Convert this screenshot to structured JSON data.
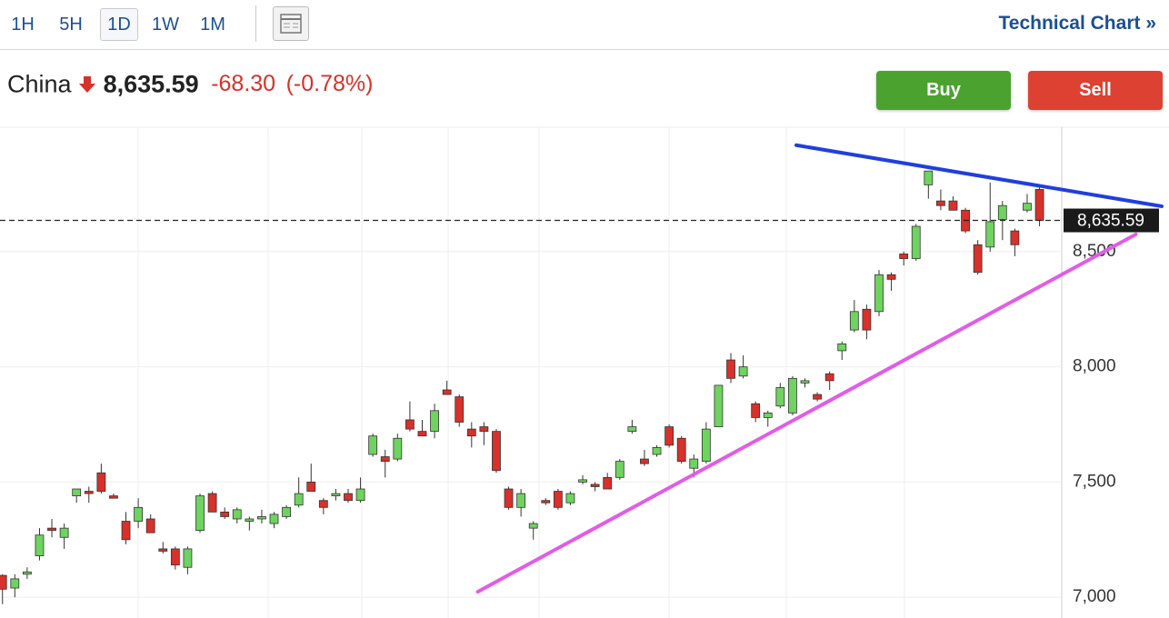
{
  "toolbar": {
    "tabs": [
      "1H",
      "5H",
      "1D",
      "1W",
      "1M"
    ],
    "selected": 2,
    "link": "Technical Chart »"
  },
  "quote": {
    "name": "China",
    "price": "8,635.59",
    "change": "-68.30",
    "change_percent": "(-0.78%)"
  },
  "buttons": {
    "buy": "Buy",
    "sell": "Sell"
  },
  "chart_data": {
    "type": "candlestick",
    "up_color": "#6fd35f",
    "down_color": "#d8302a",
    "wick_color": "#333333",
    "open": [
      7095,
      7040,
      7100,
      7180,
      7300,
      7260,
      7440,
      7460,
      7540,
      7440,
      7330,
      7330,
      7340,
      7210,
      7210,
      7130,
      7290,
      7450,
      7370,
      7340,
      7330,
      7340,
      7320,
      7350,
      7400,
      7500,
      7420,
      7440,
      7450,
      7420,
      7620,
      7610,
      7600,
      7770,
      7720,
      7720,
      7900,
      7870,
      7730,
      7740,
      7720,
      7470,
      7390,
      7300,
      7420,
      7460,
      7410,
      7500,
      7490,
      7520,
      7520,
      7720,
      7600,
      7620,
      7740,
      7690,
      7560,
      7590,
      7740,
      8030,
      7960,
      7840,
      7780,
      7830,
      7800,
      7930,
      7880,
      7970,
      8070,
      8160,
      8250,
      8240,
      8400,
      8490,
      8470,
      8790,
      8720,
      8720,
      8680,
      8530,
      8520,
      8640,
      8590,
      8680,
      8770
    ],
    "high": [
      7100,
      7100,
      7130,
      7300,
      7340,
      7320,
      7470,
      7480,
      7580,
      7450,
      7370,
      7430,
      7360,
      7240,
      7220,
      7220,
      7450,
      7460,
      7390,
      7390,
      7350,
      7380,
      7370,
      7400,
      7520,
      7580,
      7430,
      7470,
      7470,
      7520,
      7710,
      7640,
      7710,
      7850,
      7770,
      7840,
      7940,
      7880,
      7760,
      7760,
      7730,
      7480,
      7470,
      7330,
      7430,
      7470,
      7460,
      7530,
      7500,
      7540,
      7600,
      7770,
      7640,
      7660,
      7750,
      7700,
      7620,
      7760,
      7920,
      8060,
      8050,
      7850,
      7810,
      7930,
      7960,
      7950,
      7890,
      7980,
      8110,
      8290,
      8270,
      8420,
      8410,
      8500,
      8620,
      8850,
      8770,
      8740,
      8690,
      8550,
      8800,
      8720,
      8600,
      8750,
      8780
    ],
    "low": [
      6970,
      7000,
      7080,
      7160,
      7260,
      7210,
      7410,
      7410,
      7450,
      7430,
      7230,
      7300,
      7280,
      7190,
      7120,
      7100,
      7280,
      7370,
      7340,
      7320,
      7290,
      7320,
      7300,
      7340,
      7390,
      7460,
      7360,
      7420,
      7410,
      7410,
      7610,
      7520,
      7590,
      7720,
      7700,
      7690,
      7880,
      7740,
      7650,
      7660,
      7540,
      7380,
      7350,
      7250,
      7400,
      7380,
      7400,
      7490,
      7460,
      7470,
      7510,
      7710,
      7570,
      7610,
      7650,
      7580,
      7520,
      7580,
      7740,
      7930,
      7950,
      7760,
      7740,
      7820,
      7790,
      7910,
      7850,
      7900,
      8030,
      8150,
      8120,
      8220,
      8330,
      8440,
      8460,
      8730,
      8680,
      8680,
      8580,
      8400,
      8500,
      8550,
      8480,
      8670,
      8610
    ],
    "close": [
      7035,
      7080,
      7110,
      7270,
      7290,
      7300,
      7470,
      7450,
      7460,
      7430,
      7250,
      7390,
      7280,
      7200,
      7140,
      7210,
      7440,
      7370,
      7350,
      7380,
      7340,
      7350,
      7360,
      7390,
      7450,
      7460,
      7390,
      7450,
      7420,
      7470,
      7700,
      7590,
      7690,
      7730,
      7700,
      7810,
      7880,
      7760,
      7700,
      7720,
      7550,
      7390,
      7450,
      7320,
      7410,
      7390,
      7450,
      7510,
      7480,
      7470,
      7590,
      7740,
      7580,
      7650,
      7660,
      7590,
      7600,
      7730,
      7920,
      7950,
      8000,
      7780,
      7800,
      7910,
      7950,
      7940,
      7860,
      7940,
      8100,
      8240,
      8160,
      8400,
      8380,
      8470,
      8610,
      8850,
      8700,
      8680,
      8590,
      8410,
      8630,
      8700,
      8530,
      8710,
      8635.59
    ],
    "xlim": [
      -0.2,
      85.8
    ],
    "ylim": [
      6910,
      9040
    ],
    "yticks": [
      {
        "value": 7000,
        "label": "7,000"
      },
      {
        "value": 7500,
        "label": "7,500"
      },
      {
        "value": 8000,
        "label": "8,000"
      },
      {
        "value": 8500,
        "label": "8,500"
      }
    ],
    "grid": true,
    "last_price": {
      "value": 8635.59,
      "label": "8,635.59"
    },
    "trendlines": [
      {
        "color": "#1f3fe0",
        "x": [
          64.3,
          93.9
        ],
        "y": [
          8962,
          8697
        ]
      },
      {
        "color": "#e25ce8",
        "x": [
          38.5,
          91.8
        ],
        "y": [
          7024,
          8575
        ]
      }
    ]
  }
}
